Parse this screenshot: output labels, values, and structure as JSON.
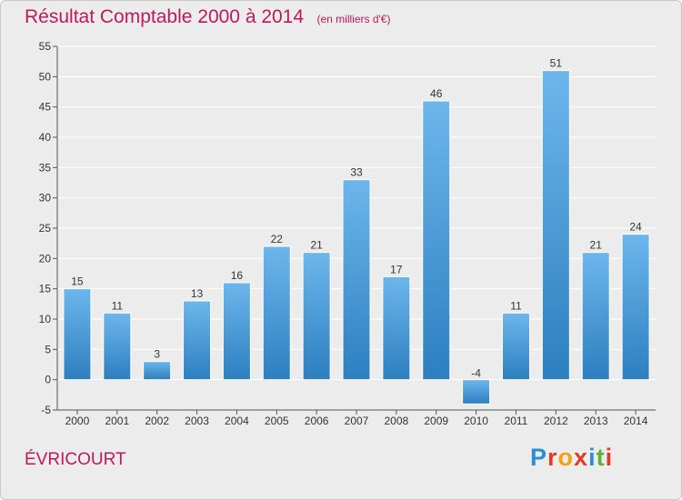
{
  "header": {
    "title": "Résultat Comptable 2000 à 2014",
    "subtitle": "(en milliers d'€)"
  },
  "footer": {
    "location": "ÉVRICOURT",
    "logo_text": "Proxiti",
    "logo_colors": [
      "#2a8fd6",
      "#e23a2a",
      "#f5a011",
      "#e23a2a",
      "#2a8fd6",
      "#5cb531",
      "#e23a2a"
    ]
  },
  "chart_data": {
    "type": "bar",
    "title": "Résultat Comptable 2000 à 2014",
    "subtitle": "(en milliers d'€)",
    "xlabel": "",
    "ylabel": "",
    "categories": [
      "2000",
      "2001",
      "2002",
      "2003",
      "2004",
      "2005",
      "2006",
      "2007",
      "2008",
      "2009",
      "2010",
      "2011",
      "2012",
      "2013",
      "2014"
    ],
    "values": [
      15,
      11,
      3,
      13,
      16,
      22,
      21,
      33,
      17,
      46,
      -4,
      11,
      51,
      21,
      24
    ],
    "data_labels": [
      "15",
      "11",
      "3",
      "13",
      "16",
      "22",
      "21",
      "33",
      "17",
      "46",
      "-4",
      "11",
      "51",
      "21",
      "24"
    ],
    "ylim": [
      -5,
      55
    ],
    "yticks": [
      -5,
      0,
      5,
      10,
      15,
      20,
      25,
      30,
      35,
      40,
      45,
      50,
      55
    ],
    "grid": true,
    "legend": "none",
    "colors": {
      "bar_light": "#6cb6ec",
      "bar_dark": "#2d7fc0",
      "grid": "#ffffff",
      "axis": "#555555",
      "text": "#333333"
    }
  }
}
